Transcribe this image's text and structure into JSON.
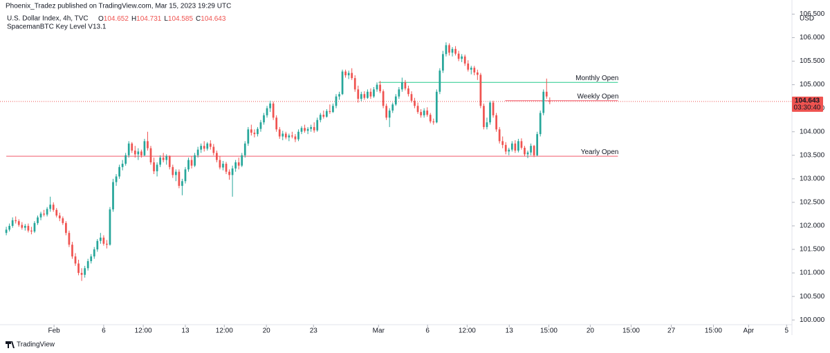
{
  "chart_data": {
    "type": "candlestick",
    "published": "Phoenix_Tradez published on TradingView.com, Mar 15, 2023 19:29 UTC",
    "title": "U.S. Dollar Index, 4h, TVC",
    "ohlc_legend": [
      {
        "label": "O",
        "value": 104.652
      },
      {
        "label": "H",
        "value": 104.731
      },
      {
        "label": "L",
        "value": 104.585
      },
      {
        "label": "C",
        "value": 104.643
      }
    ],
    "indicator": "SpacemanBTC Key Level V13.1",
    "currency": "USD",
    "brand": "TradingView",
    "up_color": "#26a69a",
    "down_color": "#ef5350",
    "ohlc": [
      [
        101.85,
        101.98,
        101.8,
        101.92
      ],
      [
        101.92,
        102.05,
        101.88,
        102.0
      ],
      [
        102.0,
        102.18,
        101.96,
        102.12
      ],
      [
        102.12,
        102.2,
        102.05,
        102.1
      ],
      [
        102.1,
        102.14,
        101.98,
        102.02
      ],
      [
        102.02,
        102.08,
        101.92,
        101.96
      ],
      [
        101.96,
        102.04,
        101.9,
        102.0
      ],
      [
        102.0,
        102.05,
        101.86,
        101.9
      ],
      [
        101.9,
        101.98,
        101.82,
        101.88
      ],
      [
        101.88,
        102.1,
        101.85,
        102.06
      ],
      [
        102.06,
        102.22,
        102.02,
        102.18
      ],
      [
        102.18,
        102.3,
        102.12,
        102.26
      ],
      [
        102.26,
        102.34,
        102.2,
        102.24
      ],
      [
        102.24,
        102.4,
        102.2,
        102.36
      ],
      [
        102.36,
        102.62,
        102.3,
        102.45
      ],
      [
        102.45,
        102.5,
        102.3,
        102.34
      ],
      [
        102.34,
        102.38,
        102.18,
        102.22
      ],
      [
        102.22,
        102.28,
        102.1,
        102.16
      ],
      [
        102.16,
        102.2,
        102.02,
        102.06
      ],
      [
        102.06,
        102.1,
        101.8,
        101.85
      ],
      [
        101.85,
        101.9,
        101.55,
        101.6
      ],
      [
        101.6,
        101.66,
        101.3,
        101.35
      ],
      [
        101.35,
        101.42,
        101.15,
        101.2
      ],
      [
        101.2,
        101.28,
        100.95,
        101.0
      ],
      [
        101.0,
        101.1,
        100.83,
        100.96
      ],
      [
        100.96,
        101.15,
        100.9,
        101.1
      ],
      [
        101.1,
        101.3,
        101.05,
        101.25
      ],
      [
        101.25,
        101.4,
        101.2,
        101.35
      ],
      [
        101.35,
        101.55,
        101.3,
        101.5
      ],
      [
        101.5,
        101.72,
        101.45,
        101.68
      ],
      [
        101.68,
        101.85,
        101.62,
        101.75
      ],
      [
        101.75,
        101.8,
        101.58,
        101.62
      ],
      [
        101.62,
        101.7,
        101.52,
        101.6
      ],
      [
        101.6,
        102.4,
        101.58,
        102.35
      ],
      [
        102.35,
        103.0,
        102.3,
        102.93
      ],
      [
        102.93,
        103.1,
        102.85,
        103.05
      ],
      [
        103.05,
        103.3,
        103.0,
        103.25
      ],
      [
        103.25,
        103.4,
        103.18,
        103.32
      ],
      [
        103.32,
        103.55,
        103.28,
        103.5
      ],
      [
        103.5,
        103.8,
        103.45,
        103.75
      ],
      [
        103.75,
        103.78,
        103.55,
        103.6
      ],
      [
        103.6,
        103.7,
        103.45,
        103.52
      ],
      [
        103.52,
        103.65,
        103.4,
        103.58
      ],
      [
        103.58,
        103.62,
        103.45,
        103.5
      ],
      [
        103.5,
        103.85,
        103.48,
        103.8
      ],
      [
        103.8,
        104.0,
        103.6,
        103.65
      ],
      [
        103.65,
        103.7,
        103.3,
        103.35
      ],
      [
        103.35,
        103.45,
        103.1,
        103.16
      ],
      [
        103.16,
        103.35,
        103.05,
        103.3
      ],
      [
        103.3,
        103.5,
        103.25,
        103.45
      ],
      [
        103.45,
        103.55,
        103.35,
        103.4
      ],
      [
        103.4,
        103.52,
        103.3,
        103.48
      ],
      [
        103.48,
        103.5,
        103.2,
        103.25
      ],
      [
        103.25,
        103.3,
        103.02,
        103.08
      ],
      [
        103.08,
        103.2,
        102.95,
        103.15
      ],
      [
        103.15,
        103.2,
        102.8,
        102.85
      ],
      [
        102.85,
        103.0,
        102.65,
        102.95
      ],
      [
        102.95,
        103.25,
        102.9,
        103.2
      ],
      [
        103.2,
        103.45,
        103.15,
        103.4
      ],
      [
        103.4,
        103.48,
        103.22,
        103.28
      ],
      [
        103.28,
        103.55,
        103.25,
        103.5
      ],
      [
        103.5,
        103.68,
        103.45,
        103.62
      ],
      [
        103.62,
        103.75,
        103.55,
        103.7
      ],
      [
        103.7,
        103.8,
        103.58,
        103.64
      ],
      [
        103.64,
        103.78,
        103.6,
        103.75
      ],
      [
        103.75,
        103.82,
        103.62,
        103.68
      ],
      [
        103.68,
        103.74,
        103.5,
        103.55
      ],
      [
        103.55,
        103.6,
        103.35,
        103.4
      ],
      [
        103.4,
        103.48,
        103.2,
        103.24
      ],
      [
        103.24,
        103.38,
        103.18,
        103.32
      ],
      [
        103.32,
        103.36,
        103.1,
        103.15
      ],
      [
        103.15,
        103.2,
        102.98,
        103.08
      ],
      [
        103.08,
        103.28,
        102.62,
        103.22
      ],
      [
        103.22,
        103.4,
        103.15,
        103.35
      ],
      [
        103.35,
        103.45,
        103.2,
        103.28
      ],
      [
        103.28,
        103.55,
        103.25,
        103.5
      ],
      [
        103.5,
        103.8,
        103.45,
        103.75
      ],
      [
        103.75,
        104.1,
        103.7,
        104.05
      ],
      [
        104.05,
        104.15,
        103.92,
        103.98
      ],
      [
        103.98,
        104.05,
        103.88,
        103.95
      ],
      [
        103.95,
        104.1,
        103.9,
        104.06
      ],
      [
        104.06,
        104.25,
        104.0,
        104.2
      ],
      [
        104.2,
        104.4,
        104.15,
        104.35
      ],
      [
        104.35,
        104.55,
        104.3,
        104.5
      ],
      [
        104.5,
        104.66,
        104.42,
        104.6
      ],
      [
        104.6,
        104.64,
        104.25,
        104.3
      ],
      [
        104.3,
        104.35,
        104.0,
        104.05
      ],
      [
        104.05,
        104.1,
        103.85,
        103.9
      ],
      [
        103.9,
        104.02,
        103.82,
        103.96
      ],
      [
        103.96,
        104.0,
        103.84,
        103.88
      ],
      [
        103.88,
        103.96,
        103.8,
        103.92
      ],
      [
        103.92,
        104.0,
        103.86,
        103.9
      ],
      [
        103.9,
        103.95,
        103.78,
        103.84
      ],
      [
        103.84,
        104.05,
        103.8,
        104.0
      ],
      [
        104.0,
        104.12,
        103.95,
        104.08
      ],
      [
        104.08,
        104.15,
        103.98,
        104.02
      ],
      [
        104.02,
        104.1,
        103.95,
        104.06
      ],
      [
        104.06,
        104.15,
        104.0,
        104.1
      ],
      [
        104.1,
        104.2,
        103.98,
        104.03
      ],
      [
        104.03,
        104.3,
        104.0,
        104.25
      ],
      [
        104.25,
        104.4,
        104.2,
        104.36
      ],
      [
        104.36,
        104.45,
        104.28,
        104.32
      ],
      [
        104.32,
        104.48,
        104.3,
        104.44
      ],
      [
        104.44,
        104.58,
        104.38,
        104.42
      ],
      [
        104.42,
        104.6,
        104.4,
        104.55
      ],
      [
        104.55,
        104.8,
        104.5,
        104.75
      ],
      [
        104.75,
        104.85,
        104.68,
        104.8
      ],
      [
        104.8,
        105.32,
        104.78,
        105.28
      ],
      [
        105.28,
        105.32,
        105.15,
        105.2
      ],
      [
        105.2,
        105.3,
        105.12,
        105.25
      ],
      [
        105.25,
        105.35,
        105.1,
        105.14
      ],
      [
        105.14,
        105.2,
        104.85,
        104.9
      ],
      [
        104.9,
        104.98,
        104.62,
        104.7
      ],
      [
        104.7,
        104.85,
        104.65,
        104.8
      ],
      [
        104.8,
        104.86,
        104.68,
        104.72
      ],
      [
        104.72,
        104.9,
        104.7,
        104.85
      ],
      [
        104.85,
        104.92,
        104.7,
        104.75
      ],
      [
        104.75,
        104.95,
        104.72,
        104.9
      ],
      [
        104.9,
        105.05,
        104.85,
        105.0
      ],
      [
        105.0,
        105.08,
        104.82,
        104.86
      ],
      [
        104.86,
        104.9,
        104.5,
        104.55
      ],
      [
        104.55,
        104.6,
        104.25,
        104.3
      ],
      [
        104.3,
        104.5,
        104.1,
        104.45
      ],
      [
        104.45,
        104.62,
        104.4,
        104.58
      ],
      [
        104.58,
        104.8,
        104.55,
        104.75
      ],
      [
        104.75,
        104.95,
        104.7,
        104.9
      ],
      [
        104.9,
        105.15,
        104.85,
        105.05
      ],
      [
        105.05,
        105.1,
        104.88,
        104.92
      ],
      [
        104.92,
        104.98,
        104.75,
        104.8
      ],
      [
        104.8,
        104.86,
        104.62,
        104.66
      ],
      [
        104.66,
        104.72,
        104.5,
        104.55
      ],
      [
        104.55,
        104.62,
        104.38,
        104.42
      ],
      [
        104.42,
        104.48,
        104.3,
        104.35
      ],
      [
        104.35,
        104.5,
        104.3,
        104.45
      ],
      [
        104.45,
        104.52,
        104.32,
        104.36
      ],
      [
        104.36,
        104.4,
        104.18,
        104.22
      ],
      [
        104.22,
        104.28,
        104.15,
        104.2
      ],
      [
        104.2,
        104.9,
        104.18,
        104.85
      ],
      [
        104.85,
        105.35,
        104.8,
        105.3
      ],
      [
        105.3,
        105.72,
        105.25,
        105.65
      ],
      [
        105.65,
        105.9,
        105.6,
        105.84
      ],
      [
        105.84,
        105.88,
        105.62,
        105.68
      ],
      [
        105.68,
        105.8,
        105.6,
        105.76
      ],
      [
        105.76,
        105.82,
        105.62,
        105.66
      ],
      [
        105.66,
        105.72,
        105.5,
        105.55
      ],
      [
        105.55,
        105.65,
        105.48,
        105.6
      ],
      [
        105.6,
        105.64,
        105.4,
        105.45
      ],
      [
        105.45,
        105.52,
        105.28,
        105.32
      ],
      [
        105.32,
        105.4,
        105.22,
        105.36
      ],
      [
        105.36,
        105.4,
        105.2,
        105.26
      ],
      [
        105.26,
        105.32,
        105.1,
        105.21
      ],
      [
        105.21,
        105.25,
        104.5,
        104.55
      ],
      [
        104.55,
        104.6,
        104.05,
        104.1
      ],
      [
        104.1,
        104.3,
        104.05,
        104.2
      ],
      [
        104.2,
        104.66,
        104.15,
        104.62
      ],
      [
        104.62,
        104.66,
        104.3,
        104.35
      ],
      [
        104.35,
        104.4,
        104.0,
        104.05
      ],
      [
        104.05,
        104.1,
        103.75,
        103.8
      ],
      [
        103.8,
        103.9,
        103.65,
        103.72
      ],
      [
        103.72,
        103.78,
        103.52,
        103.58
      ],
      [
        103.58,
        103.66,
        103.5,
        103.62
      ],
      [
        103.62,
        103.8,
        103.58,
        103.75
      ],
      [
        103.75,
        103.82,
        103.55,
        103.6
      ],
      [
        103.6,
        103.85,
        103.56,
        103.8
      ],
      [
        103.8,
        103.86,
        103.62,
        103.66
      ],
      [
        103.66,
        103.7,
        103.48,
        103.52
      ],
      [
        103.52,
        103.6,
        103.44,
        103.56
      ],
      [
        103.56,
        103.75,
        103.5,
        103.7
      ],
      [
        103.7,
        103.72,
        103.46,
        103.5
      ],
      [
        103.5,
        104.0,
        103.48,
        103.95
      ],
      [
        103.95,
        104.45,
        103.9,
        104.4
      ],
      [
        104.4,
        104.9,
        104.35,
        104.85
      ],
      [
        104.85,
        105.13,
        104.7,
        104.75
      ],
      [
        104.652,
        104.731,
        104.585,
        104.643
      ]
    ],
    "levels": [
      {
        "label": "Monthly Open",
        "value": 105.05,
        "color": "#22c98a",
        "x": [
          118.5,
          194.7
        ]
      },
      {
        "label": "Weekly Open",
        "value": 104.66,
        "color": "#f05a6a",
        "x": [
          158.8,
          194.7
        ]
      },
      {
        "label": "Yearly Open",
        "value": 103.48,
        "color": "#f05a6a",
        "x": [
          0,
          194.7
        ]
      }
    ],
    "last_price": 104.643,
    "last_price_label": "104.643",
    "countdown": "03:30:40",
    "xlim": [
      -2,
      249
    ],
    "xticks": [
      {
        "value": 15.2,
        "label": "Feb"
      },
      {
        "value": 31,
        "label": "6"
      },
      {
        "value": 43.6,
        "label": "12:00"
      },
      {
        "value": 57,
        "label": "13"
      },
      {
        "value": 69.4,
        "label": "12:00"
      },
      {
        "value": 82.8,
        "label": "20"
      },
      {
        "value": 97.8,
        "label": "23"
      },
      {
        "value": 118.5,
        "label": "Mar"
      },
      {
        "value": 134.1,
        "label": "6"
      },
      {
        "value": 146.7,
        "label": "12:00"
      },
      {
        "value": 160.1,
        "label": "13"
      },
      {
        "value": 172.7,
        "label": "15:00"
      },
      {
        "value": 185.9,
        "label": "20"
      },
      {
        "value": 198.9,
        "label": "15:00"
      },
      {
        "value": 211.7,
        "label": "27"
      },
      {
        "value": 225.1,
        "label": "15:00"
      },
      {
        "value": 236.3,
        "label": "Apr"
      },
      {
        "value": 248.4,
        "label": "5"
      }
    ],
    "ylim": [
      99.9,
      106.8
    ],
    "yticks": [
      {
        "value": 100,
        "label": "100.000"
      },
      {
        "value": 100.5,
        "label": "100.500"
      },
      {
        "value": 101,
        "label": "101.000"
      },
      {
        "value": 101.5,
        "label": "101.500"
      },
      {
        "value": 102,
        "label": "102.000"
      },
      {
        "value": 102.5,
        "label": "102.500"
      },
      {
        "value": 103,
        "label": "103.000"
      },
      {
        "value": 103.5,
        "label": "103.500"
      },
      {
        "value": 104,
        "label": "104.000"
      },
      {
        "value": 104.5,
        "label": "104.500"
      },
      {
        "value": 105,
        "label": "105.000"
      },
      {
        "value": 105.5,
        "label": "105.500"
      },
      {
        "value": 106,
        "label": "106.000"
      },
      {
        "value": 106.5,
        "label": "106.500"
      }
    ]
  }
}
